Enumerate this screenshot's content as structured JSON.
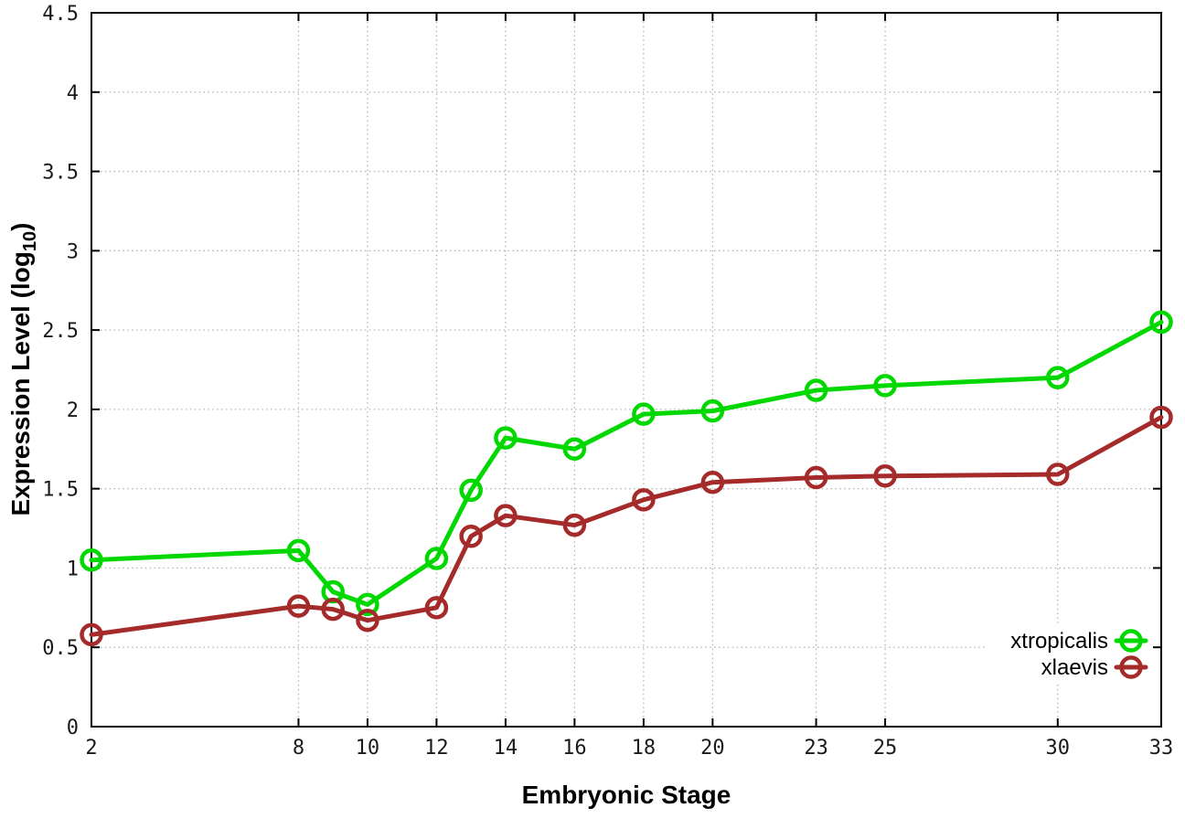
{
  "figure": {
    "background_color": "#ffffff",
    "grid_color": "#b3b3b3",
    "axis_color": "#000000"
  },
  "chart_data": {
    "type": "line",
    "title": "",
    "xlabel": "Embryonic Stage",
    "ylabel": {
      "prefix": "Expression Level (log",
      "sub": "10",
      "suffix": ")"
    },
    "xlim": [
      2,
      33
    ],
    "ylim": [
      0,
      4.5
    ],
    "xticks": [
      2,
      8,
      10,
      12,
      14,
      16,
      18,
      20,
      23,
      25,
      30,
      33
    ],
    "yticks": [
      0,
      0.5,
      1,
      1.5,
      2,
      2.5,
      3,
      3.5,
      4,
      4.5
    ],
    "grid": true,
    "legend_position": "bottom-right-inside",
    "x": [
      2,
      8,
      9,
      10,
      12,
      13,
      14,
      16,
      18,
      20,
      23,
      25,
      30,
      33
    ],
    "series": [
      {
        "name": "xtropicalis",
        "color": "#00d800",
        "marker": "open-circle",
        "values": [
          1.05,
          1.11,
          0.85,
          0.77,
          1.06,
          1.49,
          1.82,
          1.75,
          1.97,
          1.99,
          2.12,
          2.15,
          2.2,
          2.55
        ]
      },
      {
        "name": "xlaevis",
        "color": "#a52a2a",
        "marker": "open-circle",
        "values": [
          0.58,
          0.76,
          0.74,
          0.67,
          0.75,
          1.2,
          1.33,
          1.27,
          1.43,
          1.54,
          1.57,
          1.58,
          1.59,
          1.95
        ]
      }
    ]
  }
}
